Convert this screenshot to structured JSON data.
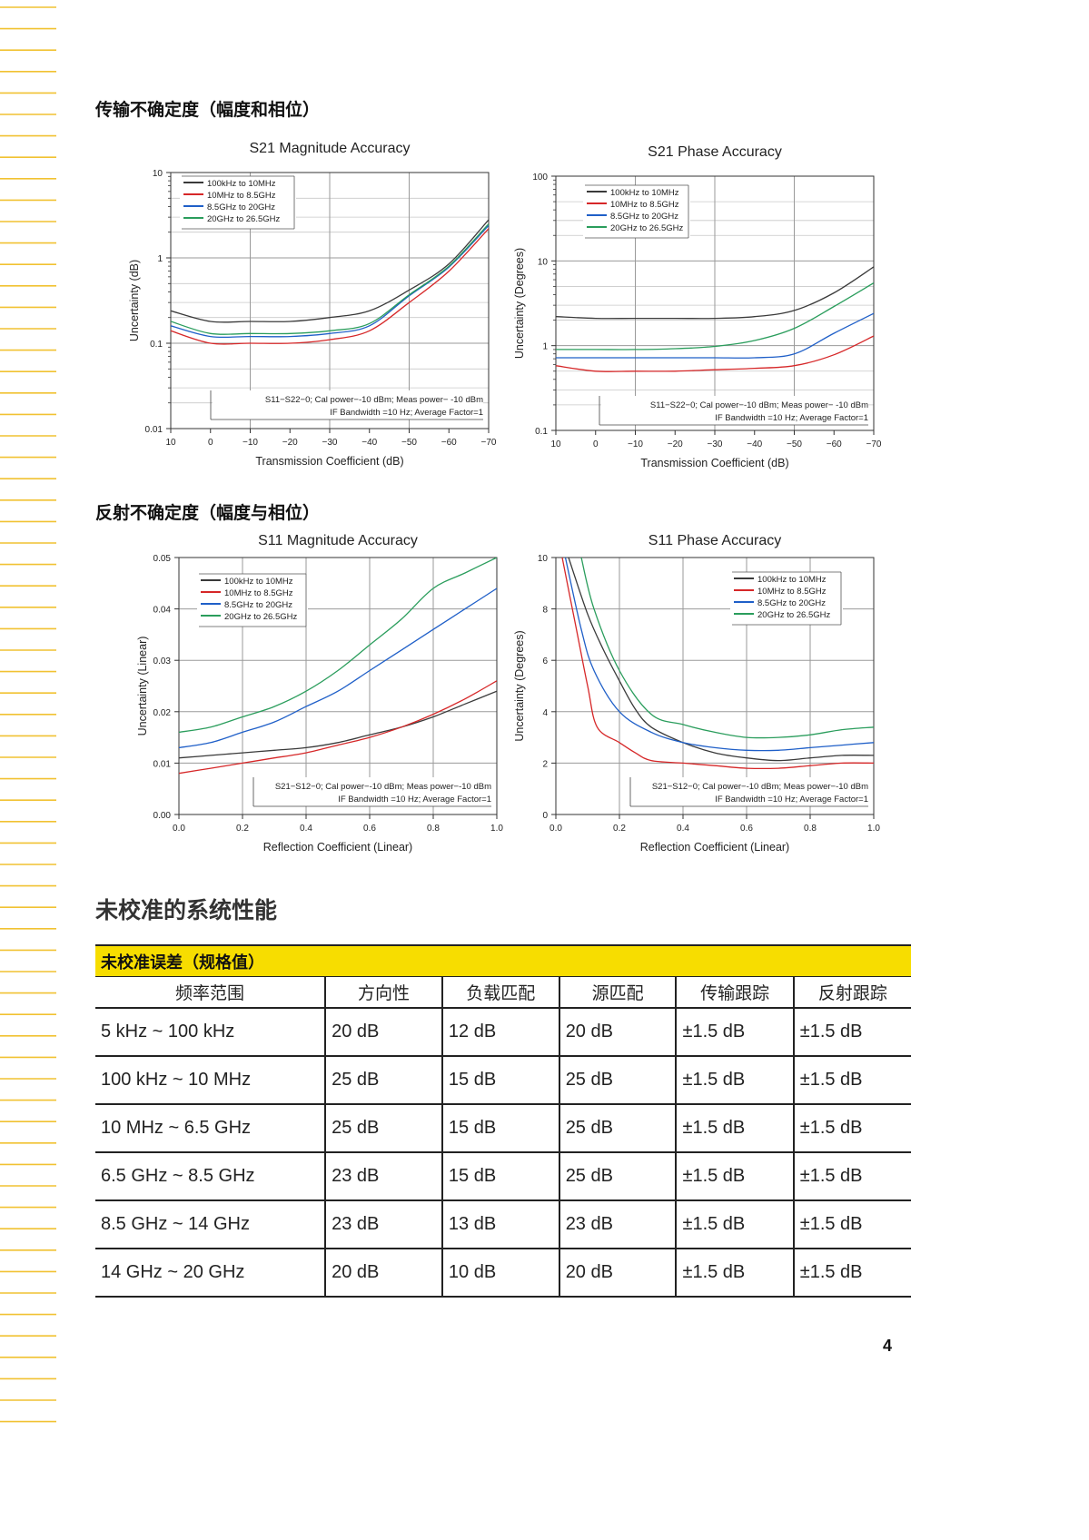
{
  "section1_title": "传输不确定度（幅度和相位）",
  "section2_title": "反射不确定度（幅度与相位）",
  "uncal_heading": "未校准的系统性能",
  "page_number": "4",
  "legend_items": [
    "100kHz to 10MHz",
    "10MHz to 8.5GHz",
    "8.5GHz to 20GHz",
    "20GHz to 26.5GHz"
  ],
  "series_colors": [
    "#3a3a3a",
    "#d62728",
    "#1f5fc8",
    "#2a9d5c"
  ],
  "chart_data": [
    {
      "id": "s21mag",
      "type": "line",
      "title": "S21 Magnitude Accuracy",
      "xlabel": "Transmission Coefficient (dB)",
      "ylabel": "Uncertainty (dB)",
      "xlim": [
        10,
        -70
      ],
      "ylim": [
        0.01,
        10
      ],
      "yscale": "log",
      "x_ticks": [
        "10",
        "0",
        "−10",
        "−20",
        "−30",
        "−40",
        "−50",
        "−60",
        "−70"
      ],
      "y_ticks": [
        "10",
        "1",
        "0.1",
        "0.01"
      ],
      "note_line1": "S11−S22−0; Cal power−-10 dBm; Meas power− -10 dBm",
      "note_line2": "IF Bandwidth =10 Hz; Average Factor=1",
      "grid": true,
      "legend": "top-left",
      "series": [
        {
          "name": "100kHz to 10MHz",
          "x": [
            10,
            0,
            -10,
            -20,
            -30,
            -40,
            -50,
            -60,
            -70
          ],
          "y": [
            0.24,
            0.18,
            0.18,
            0.18,
            0.2,
            0.24,
            0.42,
            0.85,
            2.8
          ]
        },
        {
          "name": "10MHz to 8.5GHz",
          "x": [
            10,
            0,
            -10,
            -20,
            -30,
            -40,
            -50,
            -60,
            -70
          ],
          "y": [
            0.14,
            0.1,
            0.1,
            0.1,
            0.11,
            0.14,
            0.3,
            0.7,
            2.2
          ]
        },
        {
          "name": "8.5GHz to 20GHz",
          "x": [
            10,
            0,
            -10,
            -20,
            -30,
            -40,
            -50,
            -60,
            -70
          ],
          "y": [
            0.16,
            0.12,
            0.12,
            0.12,
            0.13,
            0.16,
            0.36,
            0.78,
            2.4
          ]
        },
        {
          "name": "20GHz to 26.5GHz",
          "x": [
            10,
            0,
            -10,
            -20,
            -30,
            -40,
            -50,
            -60,
            -70
          ],
          "y": [
            0.18,
            0.13,
            0.13,
            0.13,
            0.14,
            0.17,
            0.37,
            0.8,
            2.5
          ]
        }
      ]
    },
    {
      "id": "s21ph",
      "type": "line",
      "title": "S21 Phase Accuracy",
      "xlabel": "Transmission Coefficient (dB)",
      "ylabel": "Uncertainty (Degrees)",
      "xlim": [
        10,
        -70
      ],
      "ylim": [
        0.1,
        100
      ],
      "yscale": "log",
      "x_ticks": [
        "10",
        "0",
        "−10",
        "−20",
        "−30",
        "−40",
        "−50",
        "−60",
        "−70"
      ],
      "y_ticks": [
        "100",
        "10",
        "1",
        "0.1"
      ],
      "note_line1": "S11−S22−0; Cal power−-10 dBm; Meas power− -10 dBm",
      "note_line2": "IF Bandwidth =10 Hz; Average Factor=1",
      "grid": true,
      "legend": "top-left",
      "series": [
        {
          "name": "100kHz to 10MHz",
          "x": [
            10,
            0,
            -10,
            -20,
            -30,
            -40,
            -50,
            -60,
            -70
          ],
          "y": [
            2.2,
            2.1,
            2.1,
            2.1,
            2.1,
            2.2,
            2.6,
            4.2,
            8.5
          ]
        },
        {
          "name": "10MHz to 8.5GHz",
          "x": [
            10,
            0,
            -10,
            -20,
            -30,
            -40,
            -50,
            -60,
            -70
          ],
          "y": [
            0.58,
            0.5,
            0.5,
            0.5,
            0.52,
            0.54,
            0.58,
            0.78,
            1.3
          ]
        },
        {
          "name": "8.5GHz to 20GHz",
          "x": [
            10,
            0,
            -10,
            -20,
            -30,
            -40,
            -50,
            -60,
            -70
          ],
          "y": [
            0.72,
            0.72,
            0.72,
            0.72,
            0.72,
            0.72,
            0.8,
            1.4,
            2.4
          ]
        },
        {
          "name": "20GHz to 26.5GHz",
          "x": [
            10,
            0,
            -10,
            -20,
            -30,
            -40,
            -50,
            -60,
            -70
          ],
          "y": [
            0.9,
            0.9,
            0.9,
            0.92,
            0.98,
            1.15,
            1.6,
            2.9,
            5.5
          ]
        }
      ]
    },
    {
      "id": "s11mag",
      "type": "line",
      "title": "S11 Magnitude Accuracy",
      "xlabel": "Reflection Coefficient (Linear)",
      "ylabel": "Uncertainty (Linear)",
      "xlim": [
        0,
        1
      ],
      "ylim": [
        0,
        0.05
      ],
      "yscale": "linear",
      "x_ticks": [
        "0.0",
        "0.2",
        "0.4",
        "0.6",
        "0.8",
        "1.0"
      ],
      "y_ticks": [
        "0.05",
        "0.04",
        "0.03",
        "0.02",
        "0.01",
        "0.00"
      ],
      "note_line1": "S21−S12−0; Cal power−-10 dBm; Meas power−-10 dBm",
      "note_line2": "IF Bandwidth =10 Hz; Average Factor=1",
      "grid": true,
      "legend": "top-left",
      "series": [
        {
          "name": "100kHz to 10MHz",
          "x": [
            0,
            0.1,
            0.2,
            0.3,
            0.4,
            0.5,
            0.6,
            0.7,
            0.8,
            0.9,
            1.0
          ],
          "y": [
            0.011,
            0.0115,
            0.012,
            0.0125,
            0.013,
            0.014,
            0.0155,
            0.017,
            0.019,
            0.0215,
            0.024
          ]
        },
        {
          "name": "10MHz to 8.5GHz",
          "x": [
            0,
            0.1,
            0.2,
            0.3,
            0.4,
            0.5,
            0.6,
            0.7,
            0.8,
            0.9,
            1.0
          ],
          "y": [
            0.008,
            0.009,
            0.01,
            0.011,
            0.012,
            0.0135,
            0.015,
            0.017,
            0.0195,
            0.0225,
            0.026
          ]
        },
        {
          "name": "8.5GHz to 20GHz",
          "x": [
            0,
            0.1,
            0.2,
            0.3,
            0.4,
            0.5,
            0.6,
            0.7,
            0.8,
            0.9,
            1.0
          ],
          "y": [
            0.013,
            0.014,
            0.016,
            0.018,
            0.021,
            0.024,
            0.028,
            0.032,
            0.036,
            0.04,
            0.044
          ]
        },
        {
          "name": "20GHz to 26.5GHz",
          "x": [
            0,
            0.1,
            0.2,
            0.3,
            0.4,
            0.5,
            0.6,
            0.7,
            0.8,
            0.9,
            1.0
          ],
          "y": [
            0.016,
            0.017,
            0.019,
            0.021,
            0.024,
            0.028,
            0.033,
            0.038,
            0.044,
            0.047,
            0.05
          ]
        }
      ]
    },
    {
      "id": "s11ph",
      "type": "line",
      "title": "S11 Phase Accuracy",
      "xlabel": "Reflection Coefficient (Linear)",
      "ylabel": "Uncertainty (Degrees)",
      "xlim": [
        0,
        1
      ],
      "ylim": [
        0,
        10
      ],
      "yscale": "linear",
      "x_ticks": [
        "0.0",
        "0.2",
        "0.4",
        "0.6",
        "0.8",
        "1.0"
      ],
      "y_ticks": [
        "10",
        "8",
        "6",
        "4",
        "2",
        "0"
      ],
      "note_line1": "S21−S12−0; Cal power−-10 dBm; Meas power−-10 dBm",
      "note_line2": "IF Bandwidth =10 Hz; Average Factor=1",
      "grid": true,
      "legend": "top-right",
      "series": [
        {
          "name": "100kHz to 10MHz",
          "x": [
            0.04,
            0.1,
            0.15,
            0.2,
            0.25,
            0.3,
            0.4,
            0.5,
            0.6,
            0.7,
            0.8,
            0.9,
            1.0
          ],
          "y": [
            10,
            7.8,
            6.4,
            5.2,
            4.1,
            3.4,
            2.8,
            2.4,
            2.2,
            2.1,
            2.2,
            2.3,
            2.3
          ]
        },
        {
          "name": "10MHz to 8.5GHz",
          "x": [
            0.02,
            0.06,
            0.1,
            0.13,
            0.2,
            0.25,
            0.3,
            0.4,
            0.5,
            0.6,
            0.7,
            0.8,
            0.9,
            1.0
          ],
          "y": [
            10,
            7.5,
            5.0,
            3.4,
            2.8,
            2.4,
            2.1,
            2.0,
            1.9,
            1.8,
            1.8,
            1.9,
            2.0,
            2.0
          ]
        },
        {
          "name": "8.5GHz to 20GHz",
          "x": [
            0.03,
            0.08,
            0.12,
            0.2,
            0.3,
            0.4,
            0.5,
            0.6,
            0.7,
            0.8,
            0.9,
            1.0
          ],
          "y": [
            10,
            7.2,
            5.6,
            4.0,
            3.2,
            2.8,
            2.6,
            2.5,
            2.5,
            2.6,
            2.7,
            2.8
          ]
        },
        {
          "name": "20GHz to 26.5GHz",
          "x": [
            0.08,
            0.12,
            0.2,
            0.3,
            0.4,
            0.5,
            0.6,
            0.7,
            0.8,
            0.9,
            1.0
          ],
          "y": [
            10,
            8.0,
            5.6,
            3.9,
            3.5,
            3.2,
            3.0,
            3.0,
            3.1,
            3.3,
            3.4
          ]
        }
      ]
    }
  ],
  "spec_table": {
    "caption": "未校准误差（规格值）",
    "headers": [
      "频率范围",
      "方向性",
      "负载匹配",
      "源匹配",
      "传输跟踪",
      "反射跟踪"
    ],
    "rows": [
      [
        "5 kHz ~ 100 kHz",
        "20 dB",
        "12 dB",
        "20 dB",
        "±1.5 dB",
        "±1.5 dB"
      ],
      [
        "100 kHz ~ 10 MHz",
        "25 dB",
        "15 dB",
        "25 dB",
        "±1.5 dB",
        "±1.5 dB"
      ],
      [
        "10 MHz ~ 6.5 GHz",
        "25 dB",
        "15 dB",
        "25 dB",
        "±1.5 dB",
        "±1.5 dB"
      ],
      [
        "6.5 GHz ~ 8.5 GHz",
        "23 dB",
        "15 dB",
        "25 dB",
        "±1.5 dB",
        "±1.5 dB"
      ],
      [
        "8.5 GHz ~ 14 GHz",
        "23 dB",
        "13 dB",
        "23 dB",
        "±1.5 dB",
        "±1.5 dB"
      ],
      [
        "14 GHz ~ 20 GHz",
        "20 dB",
        "10 dB",
        "20 dB",
        "±1.5 dB",
        "±1.5 dB"
      ]
    ]
  }
}
